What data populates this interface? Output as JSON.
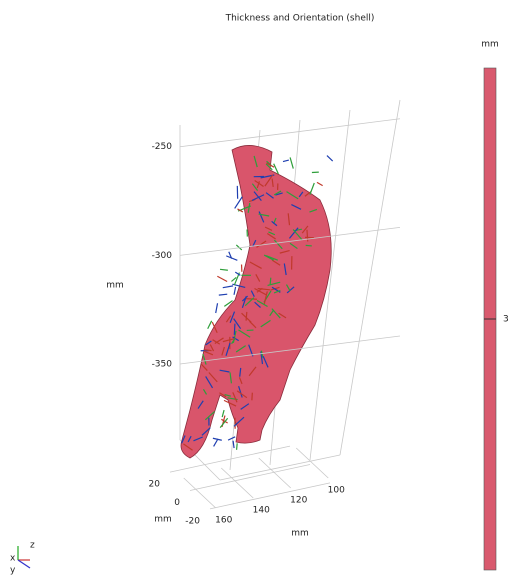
{
  "chart_data": {
    "type": "surface3d",
    "title": "Thickness and Orientation (shell)",
    "zlabel": "mm",
    "zlim": [
      -240,
      -385
    ],
    "zticks": [
      -250,
      -300,
      -350
    ],
    "ylabel": "mm",
    "ylim": [
      30,
      -30
    ],
    "yticks": [
      20,
      0,
      -20
    ],
    "xlabel": "mm",
    "xlim": [
      170,
      90
    ],
    "xticks": [
      160,
      140,
      120,
      100
    ],
    "grid": true,
    "surface_color": "#d9556b",
    "colorbar": {
      "label": "mm",
      "lim": [
        3.1,
        2.9
      ],
      "ticks": [
        3
      ],
      "color": "#d95a6e"
    },
    "triad": [
      "x",
      "y",
      "z"
    ]
  }
}
